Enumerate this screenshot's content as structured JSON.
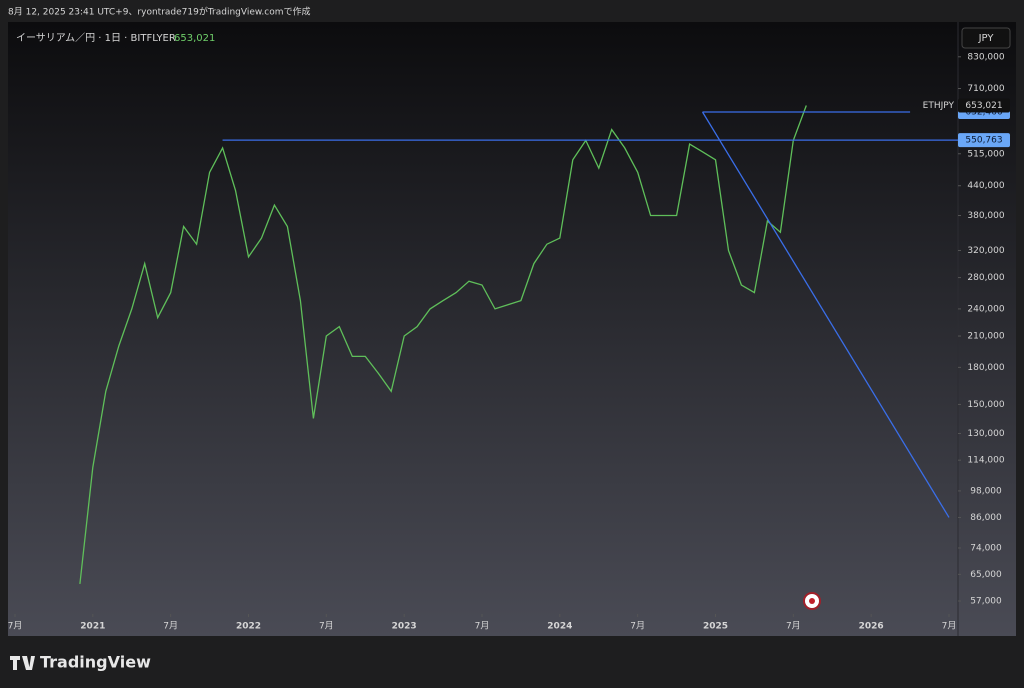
{
  "header": {
    "caption": "8月 12, 2025 23:41 UTC+9、ryontrade719がTradingView.comで作成"
  },
  "legend": {
    "symbol": "イーサリアム／円 · 1日 · BITFLYER"
  },
  "currency_button": "JPY",
  "footer": {
    "brand": "TradingView"
  },
  "chart_data": {
    "type": "line",
    "log_scale": true,
    "grid": false,
    "x": [
      "2020-12",
      "2021-01",
      "2021-02",
      "2021-03",
      "2021-04",
      "2021-05",
      "2021-06",
      "2021-07",
      "2021-08",
      "2021-09",
      "2021-10",
      "2021-11",
      "2021-12",
      "2022-01",
      "2022-02",
      "2022-03",
      "2022-04",
      "2022-05",
      "2022-06",
      "2022-07",
      "2022-08",
      "2022-09",
      "2022-10",
      "2022-11",
      "2022-12",
      "2023-01",
      "2023-02",
      "2023-03",
      "2023-04",
      "2023-05",
      "2023-06",
      "2023-07",
      "2023-08",
      "2023-09",
      "2023-10",
      "2023-11",
      "2023-12",
      "2024-01",
      "2024-02",
      "2024-03",
      "2024-04",
      "2024-05",
      "2024-06",
      "2024-07",
      "2024-08",
      "2024-09",
      "2024-10",
      "2024-11",
      "2024-12",
      "2025-01",
      "2025-02",
      "2025-03",
      "2025-04",
      "2025-05",
      "2025-06",
      "2025-07",
      "2025-08"
    ],
    "series": [
      {
        "color": "#5fbf5a",
        "values": [
          62000,
          110000,
          160000,
          200000,
          240000,
          300000,
          230000,
          260000,
          360000,
          330000,
          470000,
          530000,
          430000,
          310000,
          340000,
          400000,
          360000,
          250000,
          140000,
          210000,
          220000,
          190000,
          190000,
          175000,
          160000,
          210000,
          220000,
          240000,
          250000,
          260000,
          275000,
          270000,
          240000,
          245000,
          250000,
          300000,
          330000,
          340000,
          500000,
          550000,
          480000,
          580000,
          530000,
          470000,
          380000,
          380000,
          380000,
          540000,
          520000,
          500000,
          320000,
          270000,
          260000,
          370000,
          350000,
          550000,
          653021
        ]
      }
    ],
    "last_price": {
      "name": "ETHJPY",
      "value": 653021,
      "label": "653,021"
    },
    "levels": [
      {
        "value": 632466,
        "label": "632,466",
        "from": "2024-12",
        "to": "2026-04",
        "color": "#3a6ee8"
      },
      {
        "value": 550763,
        "label": "550,763",
        "from": "2021-11",
        "color": "#3a6ee8"
      }
    ],
    "trendline": {
      "x": [
        "2024-12",
        "2026-07"
      ],
      "values": [
        632466,
        86000
      ],
      "color": "#3a6ee8"
    },
    "xlim": [
      "2020-07",
      "2026-07"
    ],
    "xticks": [
      {
        "value": "2020-07",
        "label": "7月"
      },
      {
        "value": "2021-01",
        "label": "2021"
      },
      {
        "value": "2021-07",
        "label": "7月"
      },
      {
        "value": "2022-01",
        "label": "2022"
      },
      {
        "value": "2022-07",
        "label": "7月"
      },
      {
        "value": "2023-01",
        "label": "2023"
      },
      {
        "value": "2023-07",
        "label": "7月"
      },
      {
        "value": "2024-01",
        "label": "2024"
      },
      {
        "value": "2024-07",
        "label": "7月"
      },
      {
        "value": "2025-01",
        "label": "2025"
      },
      {
        "value": "2025-07",
        "label": "7月"
      },
      {
        "value": "2026-01",
        "label": "2026"
      },
      {
        "value": "2026-07",
        "label": "7月"
      }
    ],
    "ylim": [
      54000,
      985000
    ],
    "yticks": [
      {
        "value": 830000,
        "label": "830,000"
      },
      {
        "value": 710000,
        "label": "710,000"
      },
      {
        "value": 515000,
        "label": "515,000"
      },
      {
        "value": 440000,
        "label": "440,000"
      },
      {
        "value": 380000,
        "label": "380,000"
      },
      {
        "value": 320000,
        "label": "320,000"
      },
      {
        "value": 280000,
        "label": "280,000"
      },
      {
        "value": 240000,
        "label": "240,000"
      },
      {
        "value": 210000,
        "label": "210,000"
      },
      {
        "value": 180000,
        "label": "180,000"
      },
      {
        "value": 150000,
        "label": "150,000"
      },
      {
        "value": 130000,
        "label": "130,000"
      },
      {
        "value": 114000,
        "label": "114,000"
      },
      {
        "value": 98000,
        "label": "98,000"
      },
      {
        "value": 86000,
        "label": "86,000"
      },
      {
        "value": 74000,
        "label": "74,000"
      },
      {
        "value": 65000,
        "label": "65,000"
      },
      {
        "value": 57000,
        "label": "57,000"
      }
    ]
  }
}
